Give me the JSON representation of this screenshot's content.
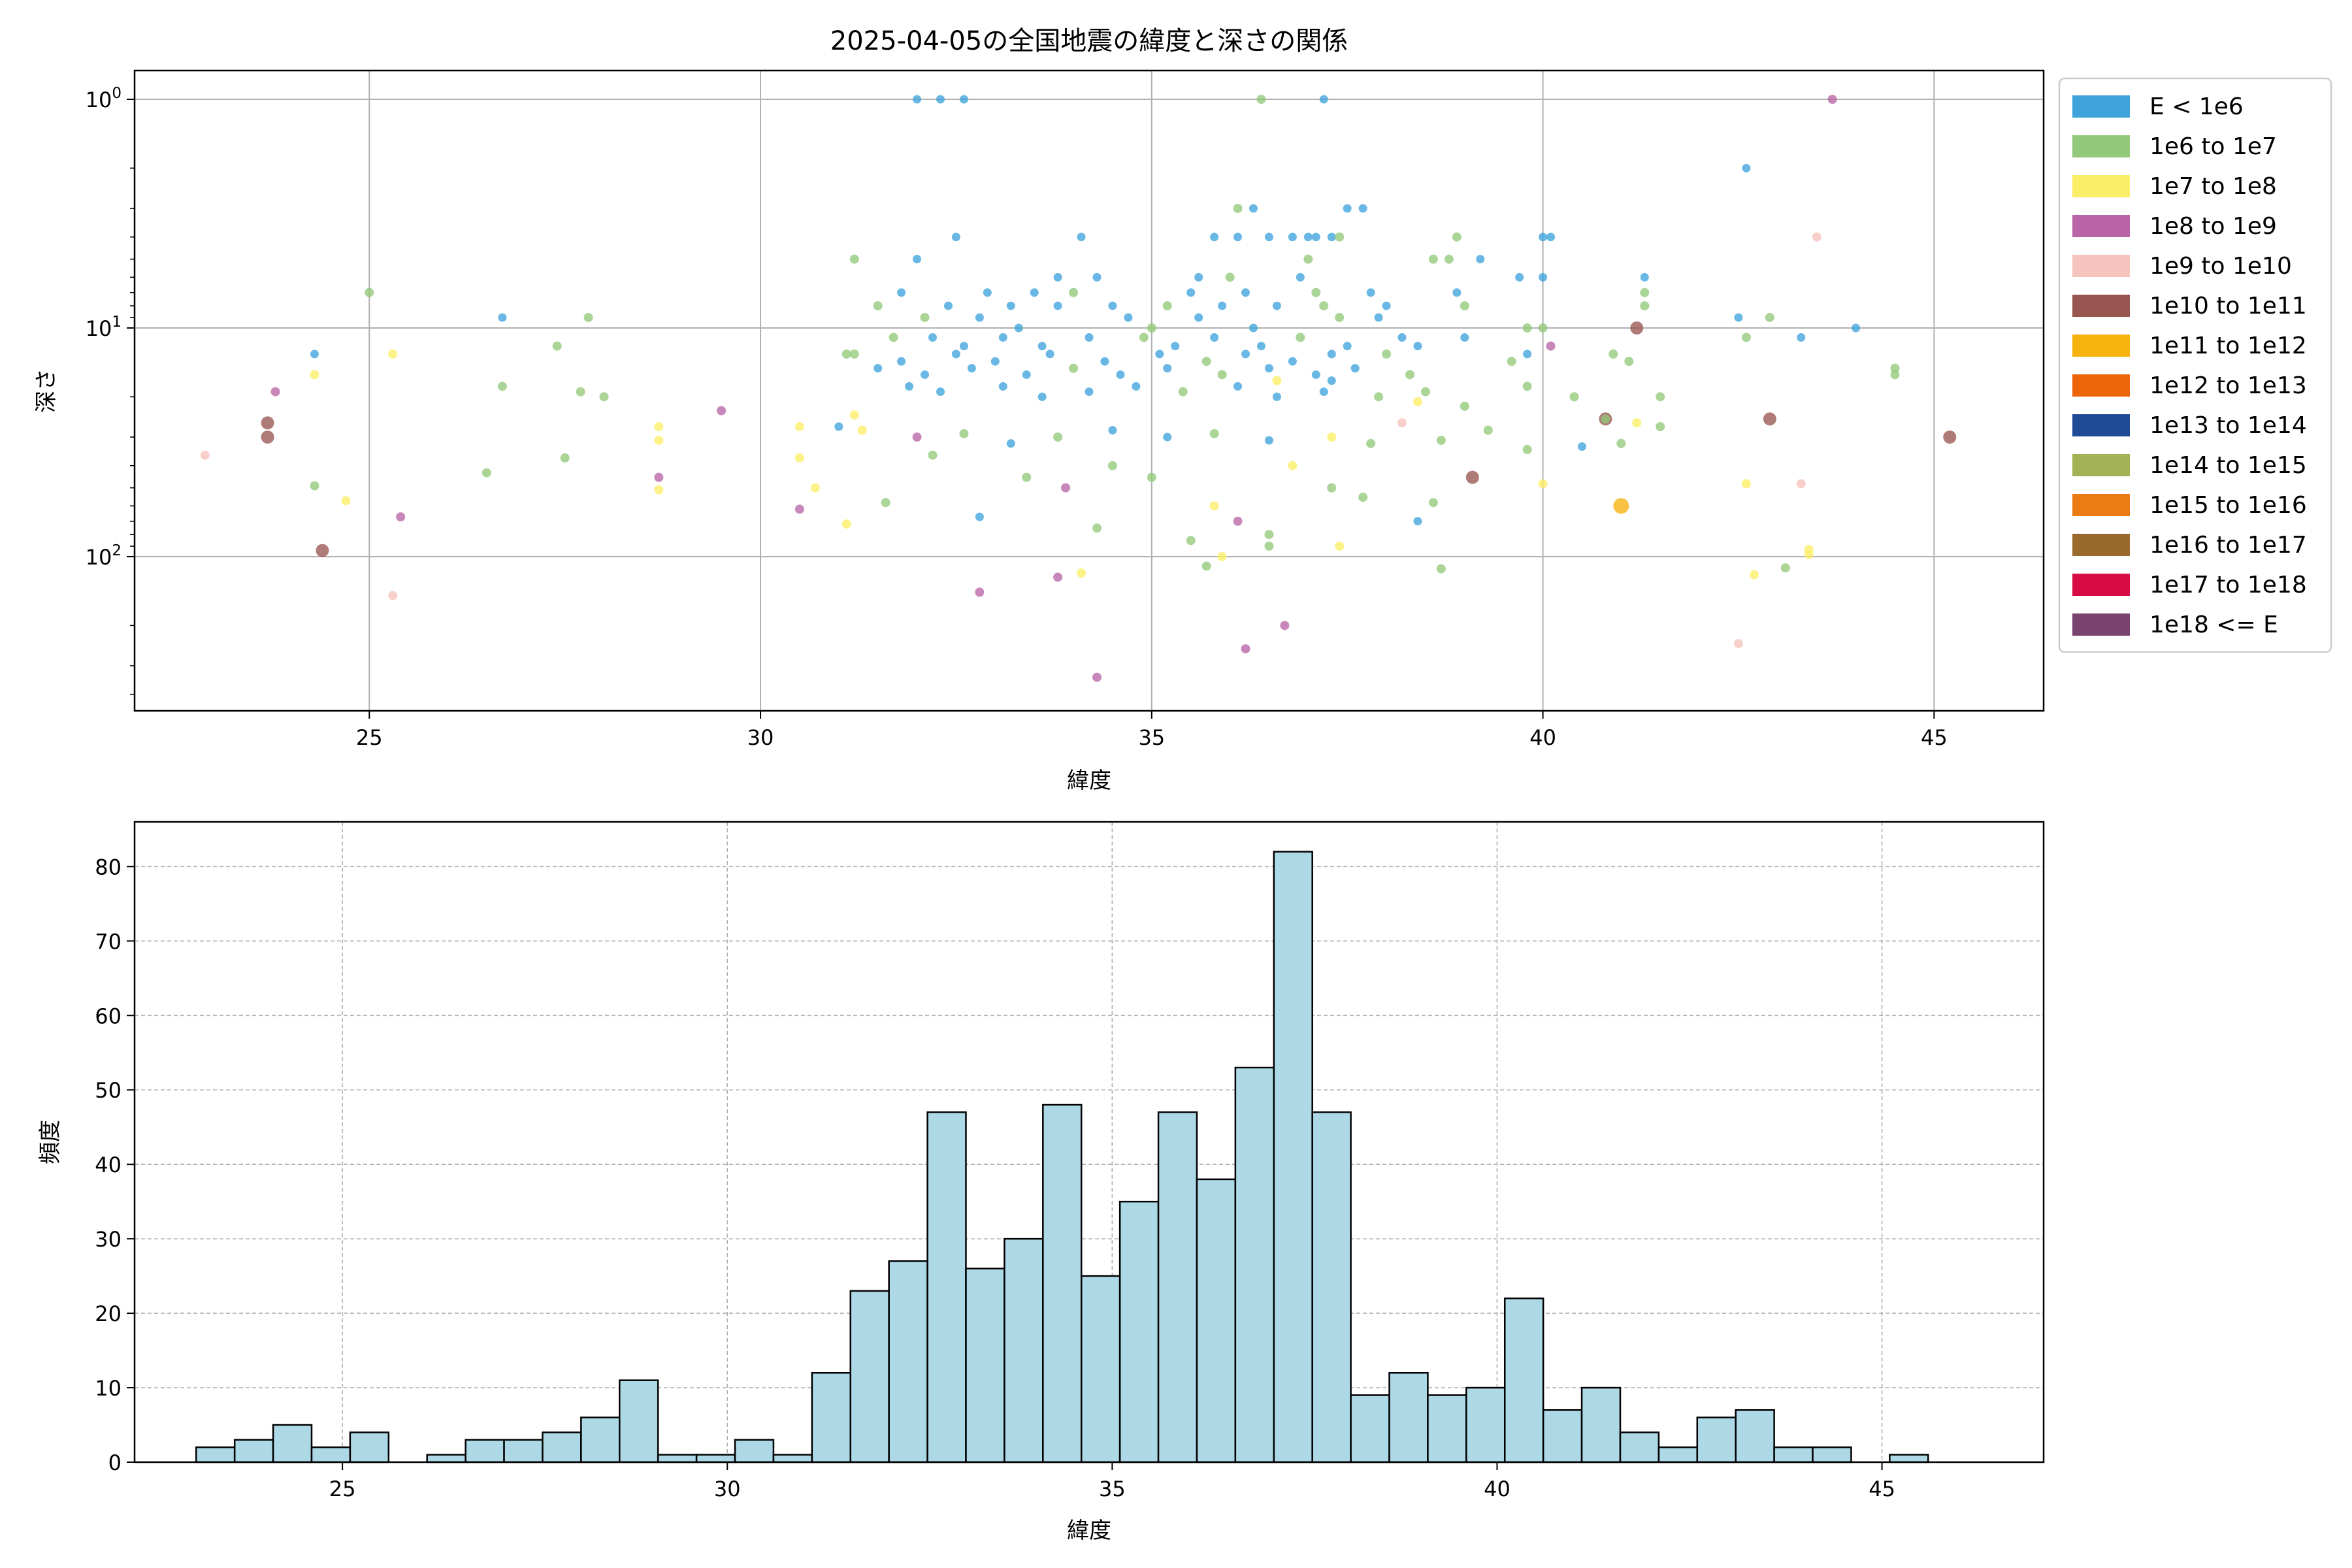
{
  "chart_data": [
    {
      "type": "scatter",
      "title": "2025-04-05の全国地震の緯度と深さの関係",
      "xlabel": "緯度",
      "ylabel": "深さ",
      "xlim": [
        22.0,
        46.4
      ],
      "ylim_display": "inverted log scale, top = 1, bottom ≈ 500",
      "y_scale": "log",
      "y_inverted": true,
      "xticks": [
        25,
        30,
        35,
        40,
        45
      ],
      "yticks": [
        {
          "value": 1,
          "label": "10^0",
          "base": "10",
          "exp": "0"
        },
        {
          "value": 10,
          "label": "10^1",
          "base": "10",
          "exp": "1"
        },
        {
          "value": 100,
          "label": "10^2",
          "base": "10",
          "exp": "2"
        }
      ],
      "grid": true,
      "legend_position": "outside-right",
      "legend": [
        {
          "label": "E < 1e6",
          "color": "#3fa3dc"
        },
        {
          "label": "1e6 to 1e7",
          "color": "#92c97a"
        },
        {
          "label": "1e7 to 1e8",
          "color": "#fbee67"
        },
        {
          "label": "1e8 to 1e9",
          "color": "#b965a7"
        },
        {
          "label": "1e9 to 1e10",
          "color": "#f6c3bd"
        },
        {
          "label": "1e10 to 1e11",
          "color": "#985650"
        },
        {
          "label": "1e11 to 1e12",
          "color": "#f6b20e"
        },
        {
          "label": "1e12 to 1e13",
          "color": "#ed6509"
        },
        {
          "label": "1e13 to 1e14",
          "color": "#1e4a96"
        },
        {
          "label": "1e14 to 1e15",
          "color": "#a2b255"
        },
        {
          "label": "1e15 to 1e16",
          "color": "#eb7b13"
        },
        {
          "label": "1e16 to 1e17",
          "color": "#996a2c"
        },
        {
          "label": "1e17 to 1e18",
          "color": "#d80c44"
        },
        {
          "label": "1e18 <= E",
          "color": "#7a426e"
        }
      ],
      "points": [
        [
          32.0,
          1,
          0
        ],
        [
          32.3,
          1,
          0
        ],
        [
          32.6,
          1,
          0
        ],
        [
          37.2,
          1,
          0
        ],
        [
          36.4,
          1,
          1
        ],
        [
          43.7,
          1,
          3
        ],
        [
          42.6,
          2,
          0
        ],
        [
          36.3,
          3,
          0
        ],
        [
          36.1,
          3,
          1
        ],
        [
          37.5,
          3,
          0
        ],
        [
          37.7,
          3,
          0
        ],
        [
          37.1,
          4,
          0
        ],
        [
          36.5,
          4,
          0
        ],
        [
          34.1,
          4,
          0
        ],
        [
          43.5,
          4,
          4
        ],
        [
          32.5,
          4,
          0
        ],
        [
          35.8,
          4,
          0
        ],
        [
          36.1,
          4,
          0
        ],
        [
          36.8,
          4,
          0
        ],
        [
          37.0,
          4,
          0
        ],
        [
          37.3,
          4,
          0
        ],
        [
          37.4,
          4,
          1
        ],
        [
          40.0,
          4,
          0
        ],
        [
          40.1,
          4,
          0
        ],
        [
          38.9,
          4,
          1
        ],
        [
          31.2,
          5,
          1
        ],
        [
          32.0,
          5,
          0
        ],
        [
          38.6,
          5,
          1
        ],
        [
          39.2,
          5,
          0
        ],
        [
          37.0,
          5,
          1
        ],
        [
          38.8,
          5,
          1
        ],
        [
          33.8,
          6,
          0
        ],
        [
          34.3,
          6,
          0
        ],
        [
          35.6,
          6,
          0
        ],
        [
          36.0,
          6,
          1
        ],
        [
          36.9,
          6,
          0
        ],
        [
          39.7,
          6,
          0
        ],
        [
          40.0,
          6,
          0
        ],
        [
          41.3,
          6,
          0
        ],
        [
          31.8,
          7,
          0
        ],
        [
          32.9,
          7,
          0
        ],
        [
          33.5,
          7,
          0
        ],
        [
          34.0,
          7,
          1
        ],
        [
          35.5,
          7,
          0
        ],
        [
          36.2,
          7,
          0
        ],
        [
          37.1,
          7,
          1
        ],
        [
          37.8,
          7,
          0
        ],
        [
          38.9,
          7,
          0
        ],
        [
          41.3,
          7,
          1
        ],
        [
          25.0,
          7,
          1
        ],
        [
          31.5,
          8,
          1
        ],
        [
          32.4,
          8,
          0
        ],
        [
          33.2,
          8,
          0
        ],
        [
          33.8,
          8,
          0
        ],
        [
          34.5,
          8,
          0
        ],
        [
          35.2,
          8,
          1
        ],
        [
          35.9,
          8,
          0
        ],
        [
          36.6,
          8,
          0
        ],
        [
          37.2,
          8,
          1
        ],
        [
          38.0,
          8,
          0
        ],
        [
          42.9,
          9,
          1
        ],
        [
          39.0,
          8,
          1
        ],
        [
          41.3,
          8,
          1
        ],
        [
          27.8,
          9,
          1
        ],
        [
          31.1,
          13,
          1
        ],
        [
          26.7,
          9,
          0
        ],
        [
          32.1,
          9,
          1
        ],
        [
          32.8,
          9,
          0
        ],
        [
          33.3,
          10,
          0
        ],
        [
          34.7,
          9,
          0
        ],
        [
          35.0,
          10,
          1
        ],
        [
          35.6,
          9,
          0
        ],
        [
          36.3,
          10,
          0
        ],
        [
          37.4,
          9,
          1
        ],
        [
          37.9,
          9,
          0
        ],
        [
          40.0,
          10,
          1
        ],
        [
          41.2,
          10,
          5
        ],
        [
          42.5,
          9,
          0
        ],
        [
          43.3,
          11,
          0
        ],
        [
          44.0,
          10,
          0
        ],
        [
          39.8,
          10,
          1
        ],
        [
          31.7,
          11,
          1
        ],
        [
          32.2,
          11,
          0
        ],
        [
          32.6,
          12,
          0
        ],
        [
          33.1,
          11,
          0
        ],
        [
          33.6,
          12,
          0
        ],
        [
          34.2,
          11,
          0
        ],
        [
          34.9,
          11,
          1
        ],
        [
          35.3,
          12,
          0
        ],
        [
          35.8,
          11,
          0
        ],
        [
          36.4,
          12,
          0
        ],
        [
          36.9,
          11,
          1
        ],
        [
          37.5,
          12,
          0
        ],
        [
          38.2,
          11,
          0
        ],
        [
          42.6,
          11,
          1
        ],
        [
          39.0,
          11,
          0
        ],
        [
          31.2,
          13,
          1
        ],
        [
          31.8,
          14,
          0
        ],
        [
          32.5,
          13,
          0
        ],
        [
          33.0,
          14,
          0
        ],
        [
          33.7,
          13,
          0
        ],
        [
          34.4,
          14,
          0
        ],
        [
          35.1,
          13,
          0
        ],
        [
          35.7,
          14,
          1
        ],
        [
          36.2,
          13,
          0
        ],
        [
          36.8,
          14,
          0
        ],
        [
          37.3,
          13,
          0
        ],
        [
          38.0,
          13,
          1
        ],
        [
          38.4,
          12,
          0
        ],
        [
          39.8,
          13,
          0
        ],
        [
          40.1,
          12,
          3
        ],
        [
          40.9,
          13,
          1
        ],
        [
          41.1,
          14,
          1
        ],
        [
          39.6,
          14,
          1
        ],
        [
          24.3,
          13,
          0
        ],
        [
          24.3,
          16,
          2
        ],
        [
          25.3,
          13,
          2
        ],
        [
          27.4,
          12,
          1
        ],
        [
          23.8,
          19,
          3
        ],
        [
          26.7,
          18,
          1
        ],
        [
          27.7,
          19,
          1
        ],
        [
          28.0,
          20,
          1
        ],
        [
          31.5,
          15,
          0
        ],
        [
          32.1,
          16,
          0
        ],
        [
          32.7,
          15,
          0
        ],
        [
          33.4,
          16,
          0
        ],
        [
          34.0,
          15,
          1
        ],
        [
          34.6,
          16,
          0
        ],
        [
          35.2,
          15,
          0
        ],
        [
          35.9,
          16,
          1
        ],
        [
          36.5,
          15,
          0
        ],
        [
          37.1,
          16,
          0
        ],
        [
          37.6,
          15,
          0
        ],
        [
          38.3,
          16,
          1
        ],
        [
          36.6,
          17,
          2
        ],
        [
          37.3,
          17,
          0
        ],
        [
          31.9,
          18,
          0
        ],
        [
          32.3,
          19,
          0
        ],
        [
          33.1,
          18,
          0
        ],
        [
          33.6,
          20,
          0
        ],
        [
          34.2,
          19,
          0
        ],
        [
          34.8,
          18,
          0
        ],
        [
          35.4,
          19,
          1
        ],
        [
          36.1,
          18,
          0
        ],
        [
          36.6,
          20,
          0
        ],
        [
          37.2,
          19,
          0
        ],
        [
          37.9,
          20,
          1
        ],
        [
          38.5,
          19,
          1
        ],
        [
          39.0,
          22,
          1
        ],
        [
          39.8,
          18,
          1
        ],
        [
          40.4,
          20,
          1
        ],
        [
          38.4,
          21,
          2
        ],
        [
          41.5,
          20,
          1
        ],
        [
          31.2,
          24,
          2
        ],
        [
          31.0,
          27,
          0
        ],
        [
          30.5,
          27,
          2
        ],
        [
          31.3,
          28,
          2
        ],
        [
          32.0,
          30,
          3
        ],
        [
          32.6,
          29,
          1
        ],
        [
          33.2,
          32,
          0
        ],
        [
          33.8,
          30,
          1
        ],
        [
          34.5,
          28,
          0
        ],
        [
          35.2,
          30,
          0
        ],
        [
          35.8,
          29,
          1
        ],
        [
          36.5,
          31,
          0
        ],
        [
          37.3,
          30,
          2
        ],
        [
          37.8,
          32,
          1
        ],
        [
          38.2,
          26,
          4
        ],
        [
          38.7,
          31,
          1
        ],
        [
          39.3,
          28,
          1
        ],
        [
          39.8,
          34,
          1
        ],
        [
          40.5,
          33,
          0
        ],
        [
          41.0,
          32,
          1
        ],
        [
          41.5,
          27,
          1
        ],
        [
          40.8,
          25,
          5
        ],
        [
          40.8,
          25,
          1
        ],
        [
          42.9,
          25,
          5
        ],
        [
          41.2,
          26,
          2
        ],
        [
          44.5,
          15,
          1
        ],
        [
          44.5,
          16,
          1
        ],
        [
          45.2,
          30,
          5
        ],
        [
          22.9,
          36,
          4
        ],
        [
          23.7,
          26,
          5
        ],
        [
          23.7,
          30,
          5
        ],
        [
          24.3,
          49,
          1
        ],
        [
          24.7,
          57,
          2
        ],
        [
          25.4,
          67,
          3
        ],
        [
          26.5,
          43,
          1
        ],
        [
          27.5,
          37,
          1
        ],
        [
          28.7,
          27,
          2
        ],
        [
          28.7,
          31,
          2
        ],
        [
          28.7,
          45,
          3
        ],
        [
          28.7,
          51,
          2
        ],
        [
          29.5,
          23,
          3
        ],
        [
          30.5,
          37,
          2
        ],
        [
          30.7,
          50,
          2
        ],
        [
          30.5,
          62,
          3
        ],
        [
          31.1,
          72,
          2
        ],
        [
          31.6,
          58,
          1
        ],
        [
          32.2,
          36,
          1
        ],
        [
          32.8,
          67,
          0
        ],
        [
          33.4,
          45,
          1
        ],
        [
          33.9,
          50,
          3
        ],
        [
          34.5,
          40,
          1
        ],
        [
          34.3,
          75,
          1
        ],
        [
          35.0,
          45,
          1
        ],
        [
          35.5,
          85,
          1
        ],
        [
          35.8,
          60,
          2
        ],
        [
          36.1,
          70,
          3
        ],
        [
          36.5,
          80,
          1
        ],
        [
          36.8,
          40,
          2
        ],
        [
          37.3,
          50,
          1
        ],
        [
          37.7,
          55,
          1
        ],
        [
          38.4,
          70,
          0
        ],
        [
          38.6,
          58,
          1
        ],
        [
          39.1,
          45,
          5
        ],
        [
          41.0,
          60,
          6
        ],
        [
          40.0,
          48,
          2
        ],
        [
          42.6,
          48,
          2
        ],
        [
          43.3,
          48,
          4
        ],
        [
          35.7,
          110,
          1
        ],
        [
          35.9,
          100,
          2
        ],
        [
          36.5,
          90,
          1
        ],
        [
          37.4,
          90,
          2
        ],
        [
          38.7,
          113,
          1
        ],
        [
          43.1,
          112,
          1
        ],
        [
          43.4,
          93,
          2
        ],
        [
          43.4,
          98,
          2
        ],
        [
          42.7,
          120,
          2
        ],
        [
          32.8,
          143,
          3
        ],
        [
          33.8,
          123,
          3
        ],
        [
          34.1,
          118,
          2
        ],
        [
          36.7,
          200,
          3
        ],
        [
          36.2,
          253,
          3
        ],
        [
          34.3,
          337,
          3
        ],
        [
          24.4,
          94,
          5
        ],
        [
          25.3,
          148,
          4
        ],
        [
          42.5,
          240,
          4
        ]
      ]
    },
    {
      "type": "bar",
      "title": "",
      "xlabel": "緯度",
      "ylabel": "頻度",
      "xlim": [
        22.3,
        47.1
      ],
      "ylim": [
        0,
        86
      ],
      "xticks": [
        25,
        30,
        35,
        40,
        45
      ],
      "yticks": [
        0,
        10,
        20,
        30,
        40,
        50,
        60,
        70,
        80
      ],
      "grid": true,
      "bar_color": "#add8e6",
      "bar_edge_color": "#000000",
      "bin_start": 23.1,
      "bin_width": 0.5,
      "values": [
        2,
        3,
        5,
        2,
        4,
        0,
        1,
        3,
        3,
        4,
        6,
        11,
        1,
        1,
        3,
        1,
        12,
        23,
        27,
        47,
        26,
        30,
        48,
        25,
        35,
        47,
        38,
        53,
        82,
        47,
        9,
        12,
        9,
        10,
        22,
        7,
        10,
        4,
        2,
        6,
        7,
        2,
        2,
        0,
        1
      ]
    }
  ]
}
